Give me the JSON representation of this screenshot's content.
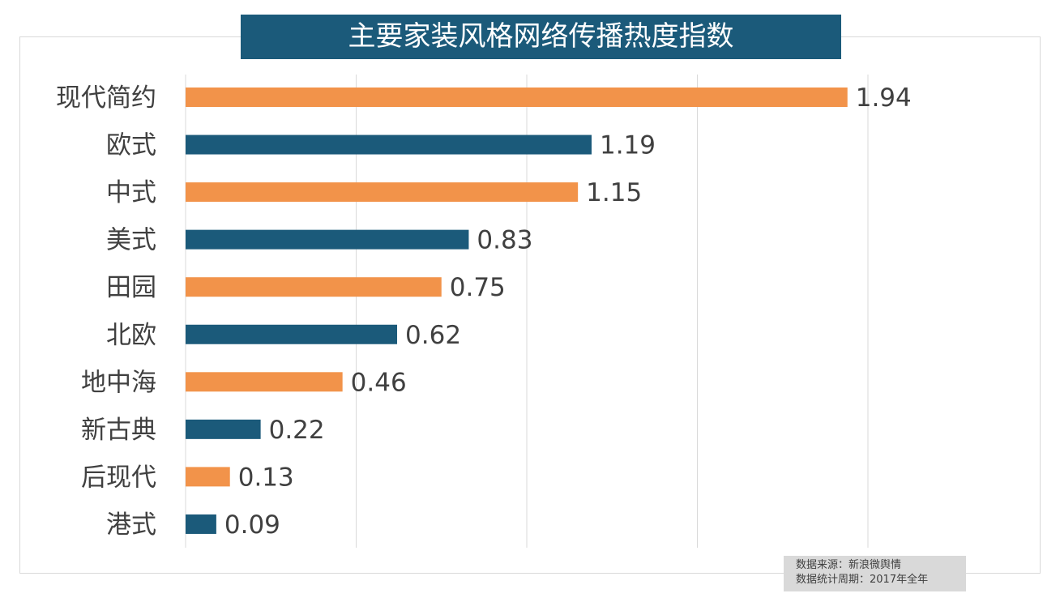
{
  "chart_data": {
    "type": "bar",
    "orientation": "horizontal",
    "title": "主要家装风格网络传播热度指数",
    "categories": [
      "现代简约",
      "欧式",
      "中式",
      "美式",
      "田园",
      "北欧",
      "地中海",
      "新古典",
      "后现代",
      "港式"
    ],
    "values": [
      1.94,
      1.19,
      1.15,
      0.83,
      0.75,
      0.62,
      0.46,
      0.22,
      0.13,
      0.09
    ],
    "xlim": [
      0,
      2
    ],
    "grid_step": 0.5,
    "grid": true,
    "colors": [
      "#F2934A",
      "#1B5A7A"
    ],
    "color_pattern": "alternating"
  },
  "source": {
    "line1": "数据来源：新浪微舆情",
    "line2": "数据统计周期：2017年全年"
  }
}
